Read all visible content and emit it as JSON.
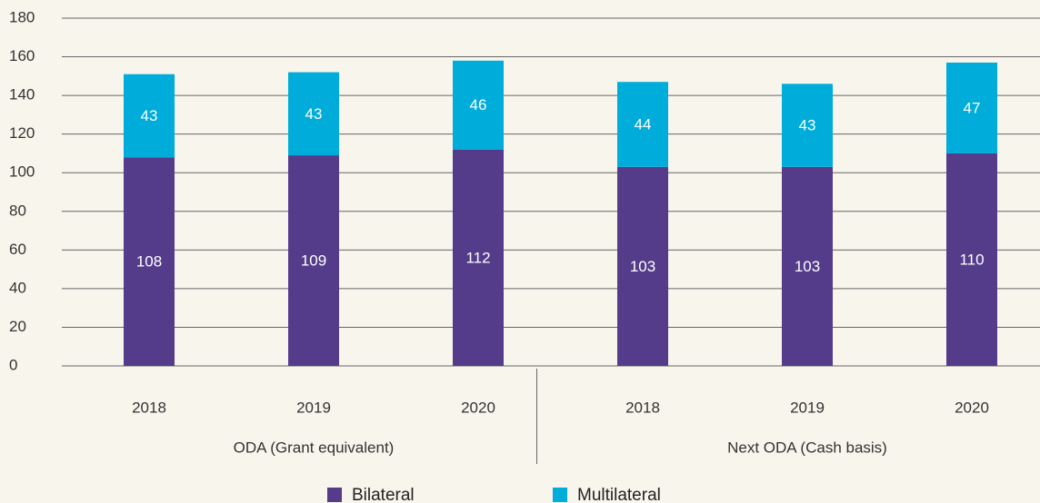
{
  "chart_data": {
    "type": "stacked_bar",
    "categories": [
      "2018",
      "2019",
      "2020",
      "2018",
      "2019",
      "2020"
    ],
    "groups": [
      "ODA (Grant equivalent)",
      "Next ODA (Cash basis)"
    ],
    "series": [
      {
        "name": "Bilateral",
        "color": "#553c8b",
        "values": [
          108,
          109,
          112,
          103,
          103,
          110
        ]
      },
      {
        "name": "Multilateral",
        "color": "#00acd9",
        "values": [
          43,
          43,
          46,
          44,
          43,
          47
        ]
      }
    ],
    "ylim": [
      0,
      180
    ],
    "yticks": [
      0,
      20,
      40,
      60,
      80,
      100,
      120,
      140,
      160,
      180
    ],
    "grid": true
  }
}
